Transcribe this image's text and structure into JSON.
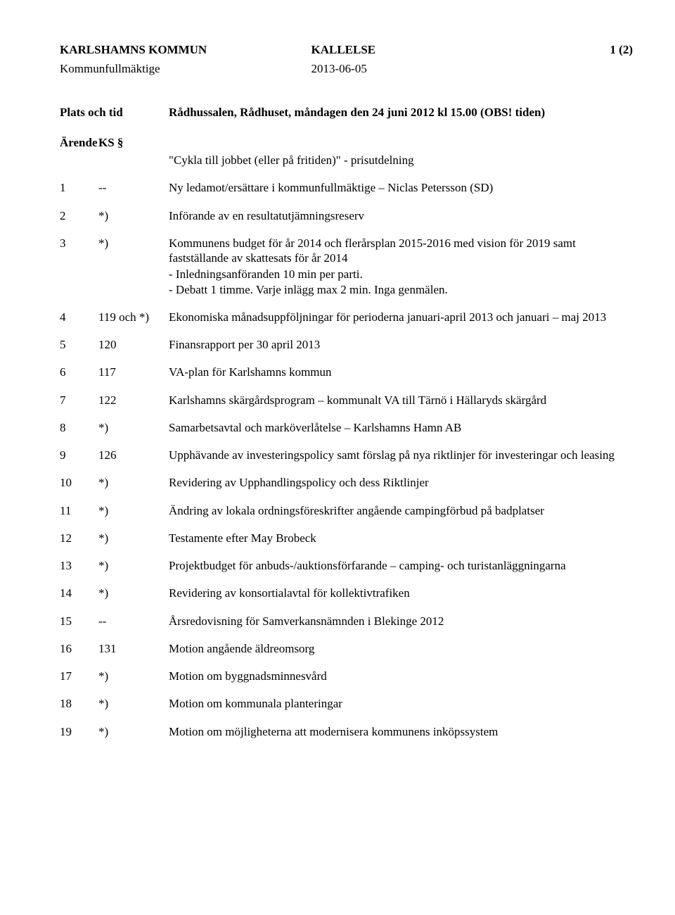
{
  "header": {
    "org": "KARLSHAMNS KOMMUN",
    "doctype": "KALLELSE",
    "pagenum": "1 (2)",
    "body": "Kommunfullmäktige",
    "date": "2013-06-05"
  },
  "plats": {
    "label": "Plats och tid",
    "value": "Rådhussalen, Rådhuset, måndagen den 24 juni 2012 kl 15.00 (OBS! tiden)"
  },
  "arendeHeader": {
    "arende": "Ärende",
    "ks": "KS §",
    "subtitle": "\"Cykla till jobbet (eller på fritiden)\" - prisutdelning"
  },
  "items": [
    {
      "num": "1",
      "ks": "--",
      "desc": "Ny ledamot/ersättare i kommunfullmäktige – Niclas Petersson (SD)"
    },
    {
      "num": "2",
      "ks": "*)",
      "desc": "Införande av en resultatutjämningsreserv"
    },
    {
      "num": "3",
      "ks": "*)",
      "desc": "Kommunens budget för år 2014 och flerårsplan 2015-2016 med vision för 2019 samt fastställande av skattesats för år 2014",
      "bullets": [
        "Inledningsanföranden 10 min per parti.",
        "Debatt 1 timme. Varje inlägg max 2 min. Inga genmälen."
      ]
    },
    {
      "num": "4",
      "ks": "119 och *)",
      "desc": "Ekonomiska månadsuppföljningar för perioderna januari-april 2013 och januari – maj 2013"
    },
    {
      "num": "5",
      "ks": "120",
      "desc": "Finansrapport per 30 april 2013"
    },
    {
      "num": "6",
      "ks": "117",
      "desc": "VA-plan för Karlshamns kommun"
    },
    {
      "num": "7",
      "ks": "122",
      "desc": "Karlshamns skärgårdsprogram – kommunalt VA till Tärnö i Hällaryds skärgård"
    },
    {
      "num": "8",
      "ks": "*)",
      "desc": "Samarbetsavtal och marköverlåtelse – Karlshamns Hamn AB"
    },
    {
      "num": "9",
      "ks": "126",
      "desc": "Upphävande av investeringspolicy samt förslag på nya riktlinjer för investeringar och leasing"
    },
    {
      "num": "10",
      "ks": "*)",
      "desc": "Revidering av Upphandlingspolicy och dess Riktlinjer"
    },
    {
      "num": "11",
      "ks": "*)",
      "desc": "Ändring av lokala ordningsföreskrifter angående campingförbud på badplatser"
    },
    {
      "num": "12",
      "ks": "*)",
      "desc": "Testamente efter May Brobeck"
    },
    {
      "num": "13",
      "ks": "*)",
      "desc": "Projektbudget för anbuds-/auktionsförfarande – camping- och turistanläggningarna"
    },
    {
      "num": "14",
      "ks": "*)",
      "desc": "Revidering av konsortialavtal för kollektivtrafiken"
    },
    {
      "num": "15",
      "ks": "--",
      "desc": "Årsredovisning för Samverkansnämnden i Blekinge 2012"
    },
    {
      "num": "16",
      "ks": "131",
      "desc": "Motion angående äldreomsorg"
    },
    {
      "num": "17",
      "ks": "*)",
      "desc": "Motion om byggnadsminnesvård"
    },
    {
      "num": "18",
      "ks": "*)",
      "desc": "Motion om kommunala planteringar"
    },
    {
      "num": "19",
      "ks": "*)",
      "desc": "Motion om möjligheterna att modernisera kommunens inköpssystem"
    }
  ]
}
